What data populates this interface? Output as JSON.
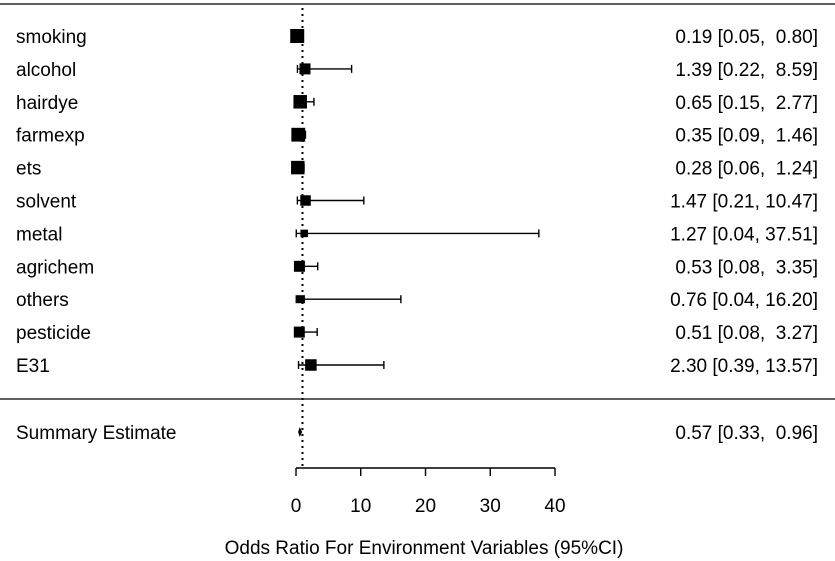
{
  "chart_data": {
    "type": "forest",
    "xlabel": "Odds Ratio For Environment Variables (95%CI)",
    "xlim": [
      0,
      40
    ],
    "xticks": [
      0,
      10,
      20,
      30,
      40
    ],
    "reference_line": 1,
    "studies": [
      {
        "label": "smoking",
        "or": 0.19,
        "lo": 0.05,
        "hi": 0.8,
        "ci_text": "0.19 [0.05,  0.80]",
        "weight": 1.0
      },
      {
        "label": "alcohol",
        "or": 1.39,
        "lo": 0.22,
        "hi": 8.59,
        "ci_text": "1.39 [0.22,  8.59]",
        "weight": 0.7
      },
      {
        "label": "hairdye",
        "or": 0.65,
        "lo": 0.15,
        "hi": 2.77,
        "ci_text": "0.65 [0.15,  2.77]",
        "weight": 0.95
      },
      {
        "label": "farmexp",
        "or": 0.35,
        "lo": 0.09,
        "hi": 1.46,
        "ci_text": "0.35 [0.09,  1.46]",
        "weight": 0.98
      },
      {
        "label": "ets",
        "or": 0.28,
        "lo": 0.06,
        "hi": 1.24,
        "ci_text": "0.28 [0.06,  1.24]",
        "weight": 0.95
      },
      {
        "label": "solvent",
        "or": 1.47,
        "lo": 0.21,
        "hi": 10.47,
        "ci_text": "1.47 [0.21, 10.47]",
        "weight": 0.65
      },
      {
        "label": "metal",
        "or": 1.27,
        "lo": 0.04,
        "hi": 37.51,
        "ci_text": "1.27 [0.04, 37.51]",
        "weight": 0.35
      },
      {
        "label": "agrichem",
        "or": 0.53,
        "lo": 0.08,
        "hi": 3.35,
        "ci_text": "0.53 [0.08,  3.35]",
        "weight": 0.7
      },
      {
        "label": "others",
        "or": 0.76,
        "lo": 0.04,
        "hi": 16.2,
        "ci_text": "0.76 [0.04, 16.20]",
        "weight": 0.4
      },
      {
        "label": "pesticide",
        "or": 0.51,
        "lo": 0.08,
        "hi": 3.27,
        "ci_text": "0.51 [0.08,  3.27]",
        "weight": 0.7
      },
      {
        "label": "E31",
        "or": 2.3,
        "lo": 0.39,
        "hi": 13.57,
        "ci_text": "2.30 [0.39, 13.57]",
        "weight": 0.75
      }
    ],
    "summary": {
      "label": "Summary Estimate",
      "or": 0.57,
      "lo": 0.33,
      "hi": 0.96,
      "ci_text": "0.57 [0.33,  0.96]"
    }
  }
}
